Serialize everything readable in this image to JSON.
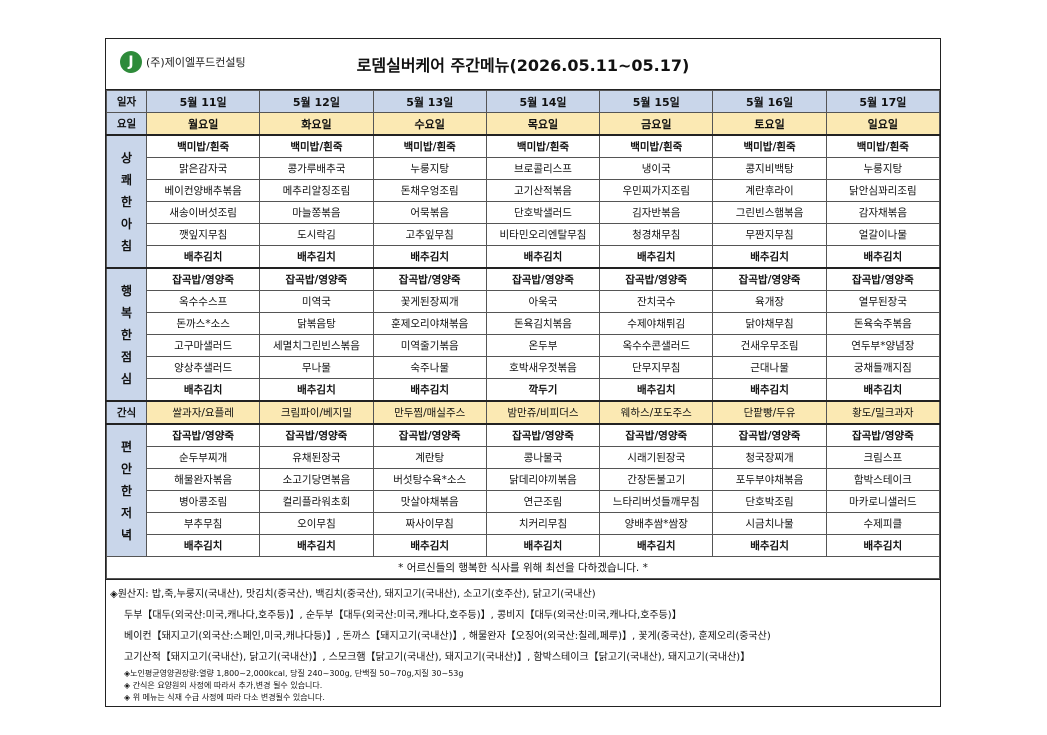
{
  "company": {
    "logo_mark": "J",
    "name": "(주)제이엘푸드컨설팅"
  },
  "title": "로뎀실버케어 주간메뉴(2026.05.11~05.17)",
  "labels": {
    "date": "일자",
    "day": "요일",
    "snack": "간식"
  },
  "dates": [
    "5월 11일",
    "5월 12일",
    "5월 13일",
    "5월 14일",
    "5월 15일",
    "5월 16일",
    "5월 17일"
  ],
  "days": [
    "월요일",
    "화요일",
    "수요일",
    "목요일",
    "금요일",
    "토요일",
    "일요일"
  ],
  "breakfast": {
    "label": "상쾌한아침",
    "rows": [
      [
        "백미밥/흰죽",
        "백미밥/흰죽",
        "백미밥/흰죽",
        "백미밥/흰죽",
        "백미밥/흰죽",
        "백미밥/흰죽",
        "백미밥/흰죽"
      ],
      [
        "맑은감자국",
        "콩가루배추국",
        "누룽지탕",
        "브로콜리스프",
        "냉이국",
        "콩지비백탕",
        "누룽지탕"
      ],
      [
        "베이컨양배추볶음",
        "메추리알징조림",
        "돈채우엉조림",
        "고기산적볶음",
        "우민찌가지조림",
        "계란후라이",
        "닭안심꽈리조림"
      ],
      [
        "새송이버섯조림",
        "마늘쫑볶음",
        "어묵볶음",
        "단호박샐러드",
        "김자반볶음",
        "그린빈스햄볶음",
        "감자채볶음"
      ],
      [
        "깻잎지무침",
        "도시락김",
        "고추잎무침",
        "비타민오리엔탈무침",
        "청경채무침",
        "무짠지무침",
        "얼갈이나물"
      ],
      [
        "배추김치",
        "배추김치",
        "배추김치",
        "배추김치",
        "배추김치",
        "배추김치",
        "배추김치"
      ]
    ]
  },
  "lunch": {
    "label": "행복한점심",
    "rows": [
      [
        "잡곡밥/영양죽",
        "잡곡밥/영양죽",
        "잡곡밥/영양죽",
        "잡곡밥/영양죽",
        "잡곡밥/영양죽",
        "잡곡밥/영양죽",
        "잡곡밥/영양죽"
      ],
      [
        "옥수수스프",
        "미역국",
        "꽃게된장찌개",
        "아욱국",
        "잔치국수",
        "육개장",
        "열무된장국"
      ],
      [
        "돈까스*소스",
        "닭볶음탕",
        "훈제오리야채볶음",
        "돈육김치볶음",
        "수제야채튀김",
        "닭야채무침",
        "돈육숙주볶음"
      ],
      [
        "고구마샐러드",
        "세멸치그린빈스볶음",
        "미역줄기볶음",
        "온두부",
        "옥수수콘샐러드",
        "건새우무조림",
        "연두부*양념장"
      ],
      [
        "양상추샐러드",
        "무나물",
        "숙주나물",
        "호박새우젓볶음",
        "단무지무침",
        "근대나물",
        "궁채들깨지짐"
      ],
      [
        "배추김치",
        "배추김치",
        "배추김치",
        "깍두기",
        "배추김치",
        "배추김치",
        "배추김치"
      ]
    ]
  },
  "snack": [
    "쌀과자/요플레",
    "크림파이/베지밀",
    "만두찜/매실주스",
    "밤만쥬/비피더스",
    "웨하스/포도주스",
    "단팥빵/두유",
    "황도/밀크과자"
  ],
  "dinner": {
    "label": "편안한저녁",
    "rows": [
      [
        "잡곡밥/영양죽",
        "잡곡밥/영양죽",
        "잡곡밥/영양죽",
        "잡곡밥/영양죽",
        "잡곡밥/영양죽",
        "잡곡밥/영양죽",
        "잡곡밥/영양죽"
      ],
      [
        "순두부찌개",
        "유채된장국",
        "계란탕",
        "콩나물국",
        "시래기된장국",
        "청국장찌개",
        "크림스프"
      ],
      [
        "해물완자볶음",
        "소고기당면볶음",
        "버섯탕수육*소스",
        "닭데리야끼볶음",
        "간장돈불고기",
        "포두부야채볶음",
        "함박스테이크"
      ],
      [
        "병아콩조림",
        "컬리플라워초회",
        "맛살야채볶음",
        "연근조림",
        "느타리버섯들깨무침",
        "단호박조림",
        "마카로니샐러드"
      ],
      [
        "부추무침",
        "오이무침",
        "짜사이무침",
        "치커리무침",
        "양배추쌈*쌈장",
        "시금치나물",
        "수제피클"
      ],
      [
        "배추김치",
        "배추김치",
        "배추김치",
        "배추김치",
        "배추김치",
        "배추김치",
        "배추김치"
      ]
    ]
  },
  "note": "* 어르신들의 행복한 식사를 위해 최선을 다하겠습니다. *",
  "origin": {
    "lines": [
      "◈원산지: 밥,죽,누룽지(국내산), 맛김치(중국산), 백김치(중국산), 돼지고기(국내산), 소고기(호주산), 닭고기(국내산)",
      "두부【대두(외국산:미국,캐나다,호주등)】, 순두부【대두(외국산:미국,캐나다,호주등)】, 콩비지【대두(외국산:미국,캐나다,호주등)】",
      "베이컨【돼지고기(외국산:스페인,미국,캐나다등)】, 돈까스【돼지고기(국내산)】, 해물완자【오징어(외국산:칠레,페루)】, 꽃게(중국산), 훈제오리(중국산)",
      "고기산적【돼지고기(국내산), 닭고기(국내산)】, 스모크햄【닭고기(국내산), 돼지고기(국내산)】, 함박스테이크【닭고기(국내산), 돼지고기(국내산)】"
    ],
    "small_lines": [
      "◈노인평균영양권장량:열량 1,800~2,000kcal, 당질 240~300g, 단백질 50~70g,지질 30~53g",
      "◈ 간식은 요양원의 사정에 따라서 추가,변경 될수 있습니다.",
      "◈ 위 메뉴는 식재 수급 사정에 따라 다소 변경될수 있습니다."
    ]
  }
}
